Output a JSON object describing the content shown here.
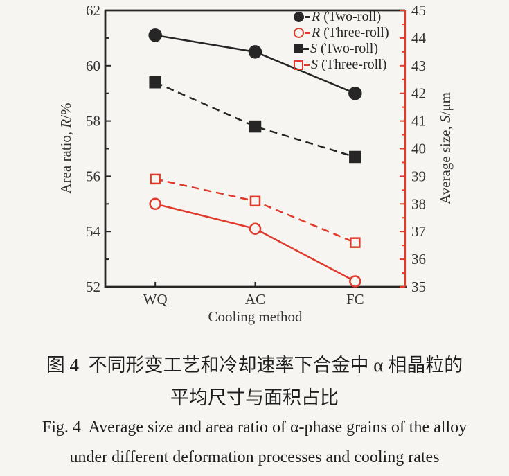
{
  "figure": {
    "caption_zh_line1": "图 4  不同形变工艺和冷却速率下合金中 α 相晶粒的",
    "caption_zh_line2": "平均尺寸与面积占比",
    "caption_en_line1": "Fig. 4  Average size and area ratio of α-phase grains of the alloy",
    "caption_en_line2": "under different deformation processes and cooling rates"
  },
  "chart_data": {
    "type": "line",
    "categories": [
      "WQ",
      "AC",
      "FC"
    ],
    "xlabel": "Cooling method",
    "legend_position": "top-right-inside",
    "grid": false,
    "colors": {
      "black": "#262626",
      "red": "#e03a2c",
      "background": "#f6f5f1"
    },
    "left_axis": {
      "label_prefix": "Area ratio, ",
      "label_symbol": "R",
      "label_suffix": "/%",
      "min": 52,
      "max": 62,
      "major_step": 2,
      "minor_step": 1,
      "tick_labels": [
        62,
        60,
        58,
        56,
        54,
        52
      ]
    },
    "right_axis": {
      "label_prefix": "Average size, ",
      "label_symbol": "S",
      "label_suffix": "/μm",
      "min": 35,
      "max": 45,
      "major_step": 1,
      "minor_step": 0.5,
      "tick_labels": [
        45,
        44,
        43,
        42,
        41,
        40,
        39,
        38,
        37,
        36,
        35
      ]
    },
    "series": [
      {
        "name": "R (Two-roll)",
        "label_symbol": "R",
        "label_rest": " (Two-roll)",
        "axis": "left",
        "color": "black",
        "marker": "circle",
        "fill": "filled",
        "line_style": "solid",
        "values": [
          61.1,
          60.5,
          59.0
        ]
      },
      {
        "name": "R (Three-roll)",
        "label_symbol": "R",
        "label_rest": " (Three-roll)",
        "axis": "left",
        "color": "red",
        "marker": "circle",
        "fill": "open",
        "line_style": "solid",
        "values": [
          55.0,
          54.1,
          52.2
        ]
      },
      {
        "name": "S (Two-roll)",
        "label_symbol": "S",
        "label_rest": " (Two-roll)",
        "axis": "right",
        "color": "black",
        "marker": "square",
        "fill": "filled",
        "line_style": "dashed",
        "values": [
          42.4,
          40.8,
          39.7
        ]
      },
      {
        "name": "S (Three-roll)",
        "label_symbol": "S",
        "label_rest": " (Three-roll)",
        "axis": "right",
        "color": "red",
        "marker": "square",
        "fill": "open",
        "line_style": "dashed",
        "values": [
          38.9,
          38.1,
          36.6
        ]
      }
    ]
  }
}
